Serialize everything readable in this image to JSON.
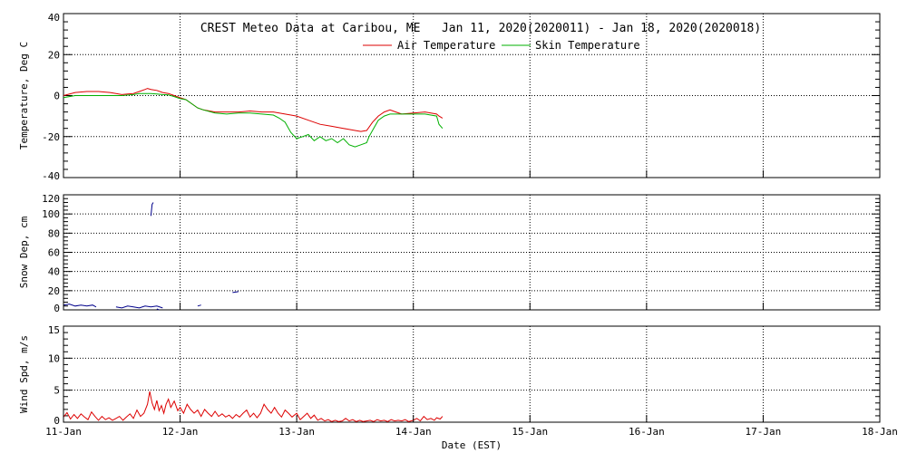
{
  "chart_data": {
    "title": "CREST Meteo Data at Caribou, ME   Jan 11, 2020(2020011) - Jan 18, 2020(2020018)",
    "xlabel": "Date (EST)",
    "x_ticks": [
      "11-Jan",
      "12-Jan",
      "13-Jan",
      "14-Jan",
      "15-Jan",
      "16-Jan",
      "17-Jan",
      "18-Jan"
    ],
    "xlim": [
      0,
      7
    ],
    "grid": true,
    "panels": [
      {
        "type": "line",
        "ylabel": "Temperature, Deg C",
        "ylim": [
          -40,
          40
        ],
        "y_ticks": [
          40,
          20,
          0,
          -20,
          -40
        ],
        "legend": "top-center",
        "series": [
          {
            "name": "Air Temperature",
            "color": "#dd0000",
            "points": [
              [
                0,
                0
              ],
              [
                0.1,
                1.5
              ],
              [
                0.2,
                2
              ],
              [
                0.3,
                2
              ],
              [
                0.4,
                1.5
              ],
              [
                0.45,
                1
              ],
              [
                0.5,
                0.5
              ],
              [
                0.55,
                0.8
              ],
              [
                0.6,
                1
              ],
              [
                0.65,
                2
              ],
              [
                0.7,
                3
              ],
              [
                0.72,
                3.5
              ],
              [
                0.75,
                3
              ],
              [
                0.8,
                2.5
              ],
              [
                0.85,
                1.5
              ],
              [
                0.9,
                1
              ],
              [
                0.95,
                0
              ],
              [
                1.0,
                -1
              ],
              [
                1.05,
                -2
              ],
              [
                1.1,
                -4
              ],
              [
                1.15,
                -6
              ],
              [
                1.2,
                -7
              ],
              [
                1.3,
                -8
              ],
              [
                1.4,
                -8
              ],
              [
                1.5,
                -8
              ],
              [
                1.55,
                -7.8
              ],
              [
                1.6,
                -7.5
              ],
              [
                1.7,
                -8
              ],
              [
                1.8,
                -8
              ],
              [
                1.9,
                -9
              ],
              [
                2.0,
                -10
              ],
              [
                2.1,
                -12
              ],
              [
                2.2,
                -14
              ],
              [
                2.3,
                -15
              ],
              [
                2.4,
                -16
              ],
              [
                2.5,
                -17
              ],
              [
                2.55,
                -17.5
              ],
              [
                2.6,
                -17
              ],
              [
                2.65,
                -13
              ],
              [
                2.7,
                -10
              ],
              [
                2.75,
                -8
              ],
              [
                2.8,
                -7
              ],
              [
                2.85,
                -8
              ],
              [
                2.9,
                -9
              ],
              [
                3.0,
                -8.5
              ],
              [
                3.1,
                -8
              ],
              [
                3.15,
                -8.5
              ],
              [
                3.2,
                -9
              ],
              [
                3.22,
                -10
              ],
              [
                3.25,
                -11
              ]
            ]
          },
          {
            "name": "Skin Temperature",
            "color": "#00b000",
            "points": [
              [
                0,
                -1
              ],
              [
                0.1,
                0
              ],
              [
                0.2,
                0
              ],
              [
                0.3,
                0
              ],
              [
                0.4,
                0
              ],
              [
                0.5,
                0
              ],
              [
                0.6,
                0.5
              ],
              [
                0.65,
                1
              ],
              [
                0.7,
                1
              ],
              [
                0.75,
                1
              ],
              [
                0.8,
                0.8
              ],
              [
                0.85,
                0.5
              ],
              [
                0.9,
                0.3
              ],
              [
                0.95,
                -0.5
              ],
              [
                1.0,
                -1.5
              ],
              [
                1.05,
                -2
              ],
              [
                1.1,
                -4
              ],
              [
                1.15,
                -6
              ],
              [
                1.2,
                -7
              ],
              [
                1.3,
                -8.5
              ],
              [
                1.4,
                -9
              ],
              [
                1.5,
                -8.5
              ],
              [
                1.6,
                -8.5
              ],
              [
                1.7,
                -9
              ],
              [
                1.8,
                -9.5
              ],
              [
                1.85,
                -11
              ],
              [
                1.9,
                -13
              ],
              [
                1.95,
                -18
              ],
              [
                2.0,
                -21
              ],
              [
                2.05,
                -20
              ],
              [
                2.1,
                -19
              ],
              [
                2.15,
                -22
              ],
              [
                2.2,
                -20
              ],
              [
                2.25,
                -22
              ],
              [
                2.3,
                -21
              ],
              [
                2.35,
                -23
              ],
              [
                2.4,
                -21
              ],
              [
                2.45,
                -24
              ],
              [
                2.5,
                -25
              ],
              [
                2.55,
                -24
              ],
              [
                2.6,
                -23
              ],
              [
                2.62,
                -20
              ],
              [
                2.65,
                -17
              ],
              [
                2.7,
                -12
              ],
              [
                2.75,
                -10
              ],
              [
                2.8,
                -9
              ],
              [
                2.9,
                -9
              ],
              [
                3.0,
                -9
              ],
              [
                3.1,
                -9
              ],
              [
                3.15,
                -9.5
              ],
              [
                3.2,
                -10
              ],
              [
                3.22,
                -14
              ],
              [
                3.25,
                -16
              ]
            ]
          }
        ]
      },
      {
        "type": "line",
        "ylabel": "Snow Dep, cm",
        "ylim": [
          0,
          120
        ],
        "y_ticks": [
          120,
          100,
          80,
          60,
          40,
          20,
          0
        ],
        "series": [
          {
            "color": "#00008b",
            "segments": [
              [
                [
                  0,
                  5
                ],
                [
                  0.05,
                  6
                ],
                [
                  0.1,
                  4
                ],
                [
                  0.15,
                  5
                ],
                [
                  0.2,
                  4
                ],
                [
                  0.25,
                  5
                ],
                [
                  0.28,
                  3
                ]
              ],
              [
                [
                  0.45,
                  3
                ],
                [
                  0.5,
                  2
                ],
                [
                  0.55,
                  4
                ],
                [
                  0.6,
                  3
                ],
                [
                  0.65,
                  2
                ],
                [
                  0.7,
                  4
                ],
                [
                  0.75,
                  3
                ],
                [
                  0.8,
                  4
                ],
                [
                  0.85,
                  2
                ]
              ],
              [
                [
                  0.75,
                  98
                ],
                [
                  0.76,
                  110
                ],
                [
                  0.77,
                  112
                ]
              ],
              [
                [
                  0.8,
                  1
                ],
                [
                  0.82,
                  0
                ]
              ],
              [
                [
                  1.15,
                  4
                ],
                [
                  1.18,
                  5
                ]
              ],
              [
                [
                  1.45,
                  18
                ],
                [
                  1.5,
                  19
                ]
              ]
            ]
          }
        ]
      },
      {
        "type": "line",
        "ylabel": "Wind Spd, m/s",
        "ylim": [
          0,
          15
        ],
        "y_ticks": [
          15,
          10,
          5,
          0
        ],
        "series": [
          {
            "color": "#dd0000",
            "points": [
              [
                0,
                0.8
              ],
              [
                0.03,
                1.5
              ],
              [
                0.06,
                0.5
              ],
              [
                0.09,
                1.2
              ],
              [
                0.12,
                0.6
              ],
              [
                0.15,
                1.3
              ],
              [
                0.18,
                0.8
              ],
              [
                0.21,
                0.4
              ],
              [
                0.24,
                1.6
              ],
              [
                0.27,
                0.9
              ],
              [
                0.3,
                0.3
              ],
              [
                0.33,
                0.9
              ],
              [
                0.36,
                0.4
              ],
              [
                0.39,
                0.7
              ],
              [
                0.42,
                0.3
              ],
              [
                0.45,
                0.6
              ],
              [
                0.48,
                0.9
              ],
              [
                0.51,
                0.3
              ],
              [
                0.54,
                0.8
              ],
              [
                0.57,
                1.3
              ],
              [
                0.6,
                0.6
              ],
              [
                0.63,
                1.9
              ],
              [
                0.66,
                0.9
              ],
              [
                0.69,
                1.4
              ],
              [
                0.72,
                2.8
              ],
              [
                0.74,
                4.8
              ],
              [
                0.76,
                3.0
              ],
              [
                0.78,
                2.0
              ],
              [
                0.8,
                3.4
              ],
              [
                0.82,
                1.8
              ],
              [
                0.84,
                2.6
              ],
              [
                0.86,
                1.4
              ],
              [
                0.88,
                2.8
              ],
              [
                0.9,
                3.6
              ],
              [
                0.92,
                2.3
              ],
              [
                0.95,
                3.3
              ],
              [
                0.98,
                1.8
              ],
              [
                1.0,
                2.3
              ],
              [
                1.03,
                1.4
              ],
              [
                1.06,
                2.8
              ],
              [
                1.09,
                2.0
              ],
              [
                1.12,
                1.4
              ],
              [
                1.15,
                1.9
              ],
              [
                1.18,
                0.9
              ],
              [
                1.21,
                2.0
              ],
              [
                1.24,
                1.4
              ],
              [
                1.27,
                0.9
              ],
              [
                1.3,
                1.7
              ],
              [
                1.33,
                0.9
              ],
              [
                1.36,
                1.3
              ],
              [
                1.39,
                0.8
              ],
              [
                1.42,
                1.1
              ],
              [
                1.45,
                0.6
              ],
              [
                1.48,
                1.2
              ],
              [
                1.51,
                0.8
              ],
              [
                1.54,
                1.4
              ],
              [
                1.57,
                1.9
              ],
              [
                1.6,
                0.8
              ],
              [
                1.63,
                1.4
              ],
              [
                1.66,
                0.7
              ],
              [
                1.69,
                1.4
              ],
              [
                1.72,
                2.8
              ],
              [
                1.75,
                2.0
              ],
              [
                1.78,
                1.4
              ],
              [
                1.81,
                2.3
              ],
              [
                1.84,
                1.4
              ],
              [
                1.87,
                0.8
              ],
              [
                1.9,
                1.9
              ],
              [
                1.93,
                1.4
              ],
              [
                1.96,
                0.8
              ],
              [
                2.0,
                1.4
              ],
              [
                2.03,
                0.4
              ],
              [
                2.06,
                0.9
              ],
              [
                2.09,
                1.4
              ],
              [
                2.12,
                0.6
              ],
              [
                2.15,
                1.1
              ],
              [
                2.18,
                0.3
              ],
              [
                2.21,
                0.6
              ],
              [
                2.24,
                0.2
              ],
              [
                2.27,
                0.4
              ],
              [
                2.3,
                0.1
              ],
              [
                2.33,
                0.3
              ],
              [
                2.36,
                0.1
              ],
              [
                2.39,
                0.2
              ],
              [
                2.42,
                0.6
              ],
              [
                2.45,
                0.2
              ],
              [
                2.48,
                0.4
              ],
              [
                2.51,
                0.1
              ],
              [
                2.54,
                0.3
              ],
              [
                2.57,
                0.1
              ],
              [
                2.6,
                0.2
              ],
              [
                2.63,
                0.3
              ],
              [
                2.66,
                0.1
              ],
              [
                2.69,
                0.4
              ],
              [
                2.72,
                0.2
              ],
              [
                2.75,
                0.3
              ],
              [
                2.78,
                0.1
              ],
              [
                2.81,
                0.4
              ],
              [
                2.84,
                0.2
              ],
              [
                2.87,
                0.3
              ],
              [
                2.9,
                0.2
              ],
              [
                2.93,
                0.4
              ],
              [
                2.96,
                0.1
              ],
              [
                3.0,
                0.3
              ],
              [
                3.03,
                0.6
              ],
              [
                3.06,
                0.2
              ],
              [
                3.09,
                0.9
              ],
              [
                3.12,
                0.4
              ],
              [
                3.15,
                0.6
              ],
              [
                3.18,
                0.3
              ],
              [
                3.2,
                0.7
              ],
              [
                3.23,
                0.5
              ],
              [
                3.25,
                0.9
              ]
            ]
          }
        ]
      }
    ]
  }
}
